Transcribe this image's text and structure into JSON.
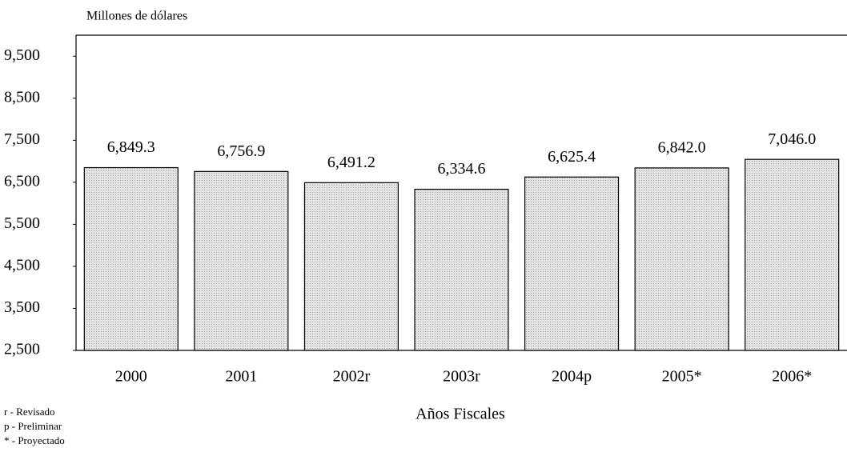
{
  "chart_data": {
    "type": "bar",
    "y_axis_title": "Millones de dólares",
    "x_axis_title": "Años Fiscales",
    "categories": [
      "2000",
      "2001",
      "2002r",
      "2003r",
      "2004p",
      "2005*",
      "2006*"
    ],
    "values": [
      6849.3,
      6756.9,
      6491.2,
      6334.6,
      6625.4,
      6842.0,
      7046.0
    ],
    "value_labels": [
      "6,849.3",
      "6,756.9",
      "6,491.2",
      "6,334.6",
      "6,625.4",
      "6,842.0",
      "7,046.0"
    ],
    "color": "#d6d6d6",
    "ylim": [
      2500,
      10000
    ],
    "yticks": [
      {
        "value": 2500,
        "label": "2,500"
      },
      {
        "value": 3500,
        "label": "3,500"
      },
      {
        "value": 4500,
        "label": "4,500"
      },
      {
        "value": 5500,
        "label": "5,500"
      },
      {
        "value": 6500,
        "label": "6,500"
      },
      {
        "value": 7500,
        "label": "7,500"
      },
      {
        "value": 8500,
        "label": "8,500"
      },
      {
        "value": 9500,
        "label": "9,500"
      }
    ],
    "grid": false,
    "notes": [
      "r - Revisado",
      "p - Preliminar",
      "* - Proyectado"
    ]
  }
}
